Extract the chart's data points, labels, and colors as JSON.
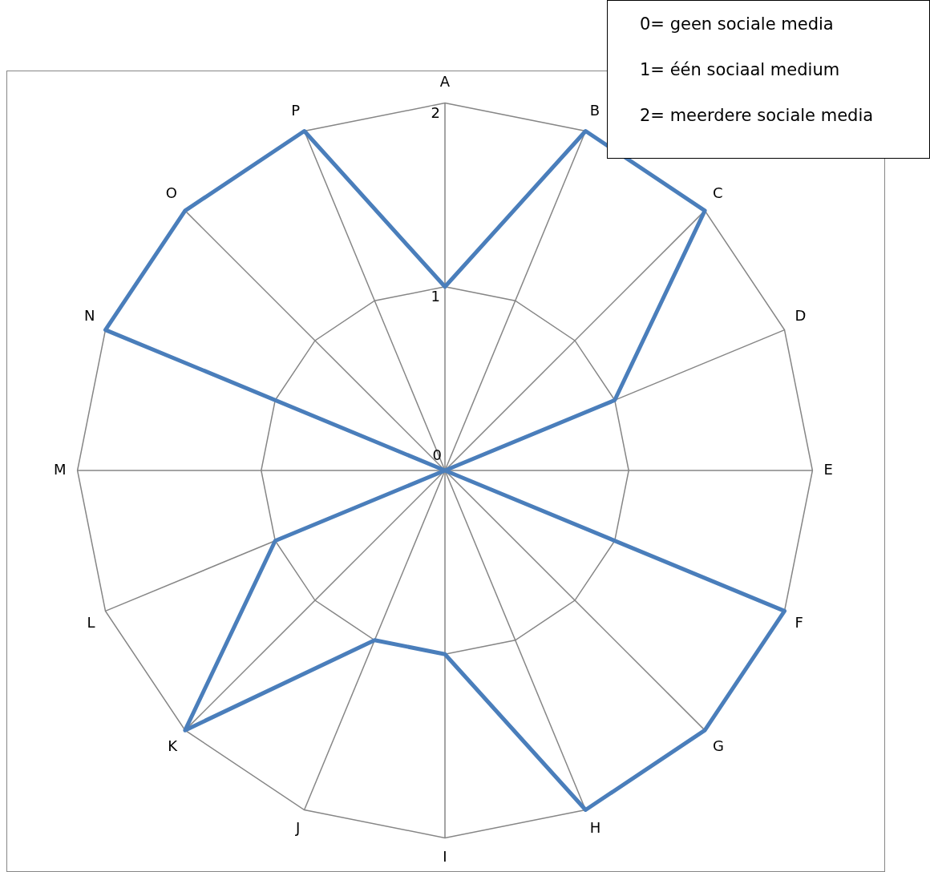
{
  "chart_data": {
    "type": "radar",
    "categories": [
      "A",
      "B",
      "C",
      "D",
      "E",
      "F",
      "G",
      "H",
      "I",
      "J",
      "K",
      "L",
      "M",
      "N",
      "O",
      "P"
    ],
    "series": [
      {
        "color": "#4a7ebb",
        "values": [
          1,
          2,
          2,
          1,
          0,
          2,
          2,
          2,
          1,
          1,
          2,
          1,
          0,
          2,
          2,
          2
        ]
      }
    ],
    "ylim": [
      0,
      2
    ],
    "yticks": [
      0,
      1,
      2
    ],
    "grid": true,
    "marker": "none",
    "annotations": [
      "0= geen sociale media",
      "1= één sociaal medium",
      "2= meerdere sociale media"
    ]
  }
}
